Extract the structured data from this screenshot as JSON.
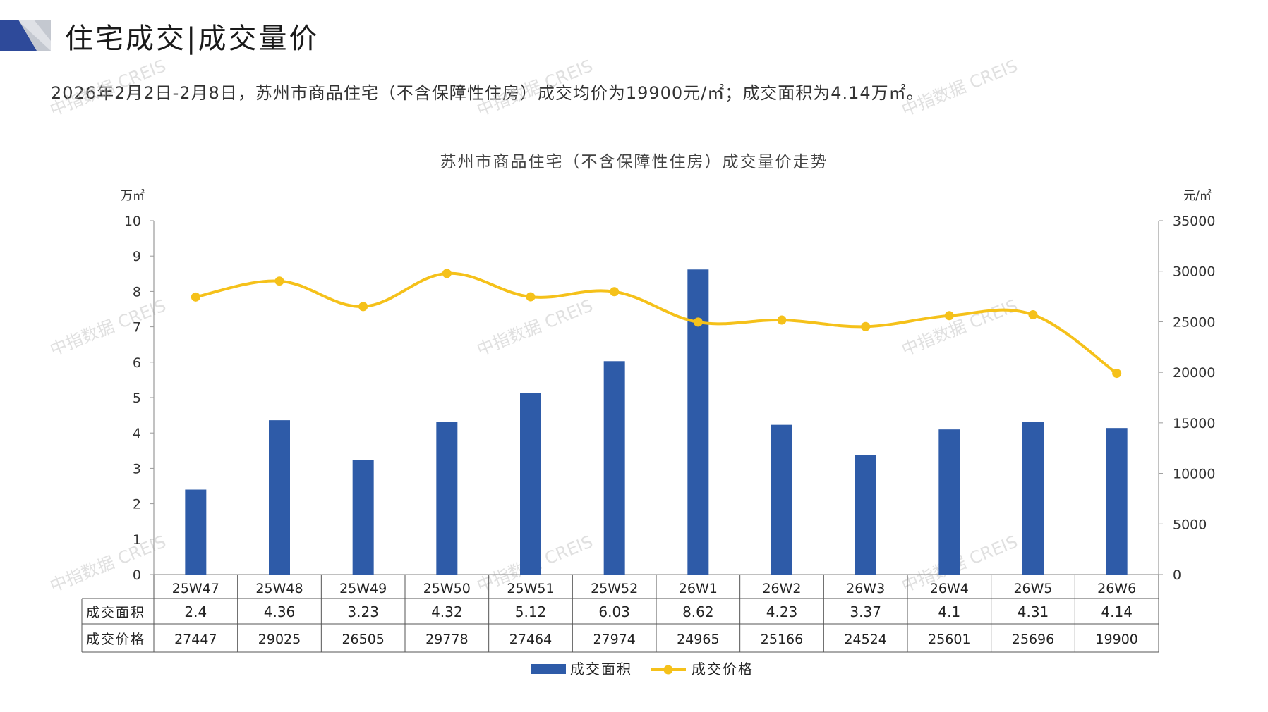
{
  "header": {
    "title": "住宅成交|成交量价"
  },
  "summary": {
    "text": "2026年2月2日-2月8日，苏州市商品住宅（不含保障性住房）成交均价为19900元/㎡；成交面积为4.14万㎡。"
  },
  "watermark": {
    "text": "中指数据 CREIS"
  },
  "colors": {
    "bar": "#2E5BA8",
    "line": "#F5C11A",
    "axis": "#9a9a9a",
    "logo_dark": "#2E4A9A",
    "logo_gray": "#bfc3cc"
  },
  "chart_data": {
    "type": "bar",
    "title": "苏州市商品住宅（不含保障性住房）成交量价走势",
    "categories": [
      "25W47",
      "25W48",
      "25W49",
      "25W50",
      "25W51",
      "25W52",
      "26W1",
      "26W2",
      "26W3",
      "26W4",
      "26W5",
      "26W6"
    ],
    "y_left": {
      "unit": "万㎡",
      "range": [
        0,
        10
      ],
      "ticks": [
        "0",
        "1",
        "2",
        "3",
        "4",
        "5",
        "6",
        "7",
        "8",
        "9",
        "10"
      ]
    },
    "y_right": {
      "unit": "元/㎡",
      "range": [
        0,
        35000
      ],
      "ticks": [
        "0",
        "5000",
        "10000",
        "15000",
        "20000",
        "25000",
        "30000",
        "35000"
      ]
    },
    "series": [
      {
        "name": "成交面积",
        "type": "bar",
        "axis": "left",
        "values": [
          2.4,
          4.36,
          3.23,
          4.32,
          5.12,
          6.03,
          8.62,
          4.23,
          3.37,
          4.1,
          4.31,
          4.14
        ],
        "labels": [
          "2.4",
          "4.36",
          "3.23",
          "4.32",
          "5.12",
          "6.03",
          "8.62",
          "4.23",
          "3.37",
          "4.1",
          "4.31",
          "4.14"
        ]
      },
      {
        "name": "成交价格",
        "type": "line",
        "axis": "right",
        "values": [
          27447,
          29025,
          26505,
          29778,
          27464,
          27974,
          24965,
          25166,
          24524,
          25601,
          25696,
          19900
        ],
        "labels": [
          "27447",
          "29025",
          "26505",
          "29778",
          "27464",
          "27974",
          "24965",
          "25166",
          "24524",
          "25601",
          "25696",
          "19900"
        ]
      }
    ],
    "grid": false,
    "legend": "bottom-center",
    "data_table": true
  }
}
